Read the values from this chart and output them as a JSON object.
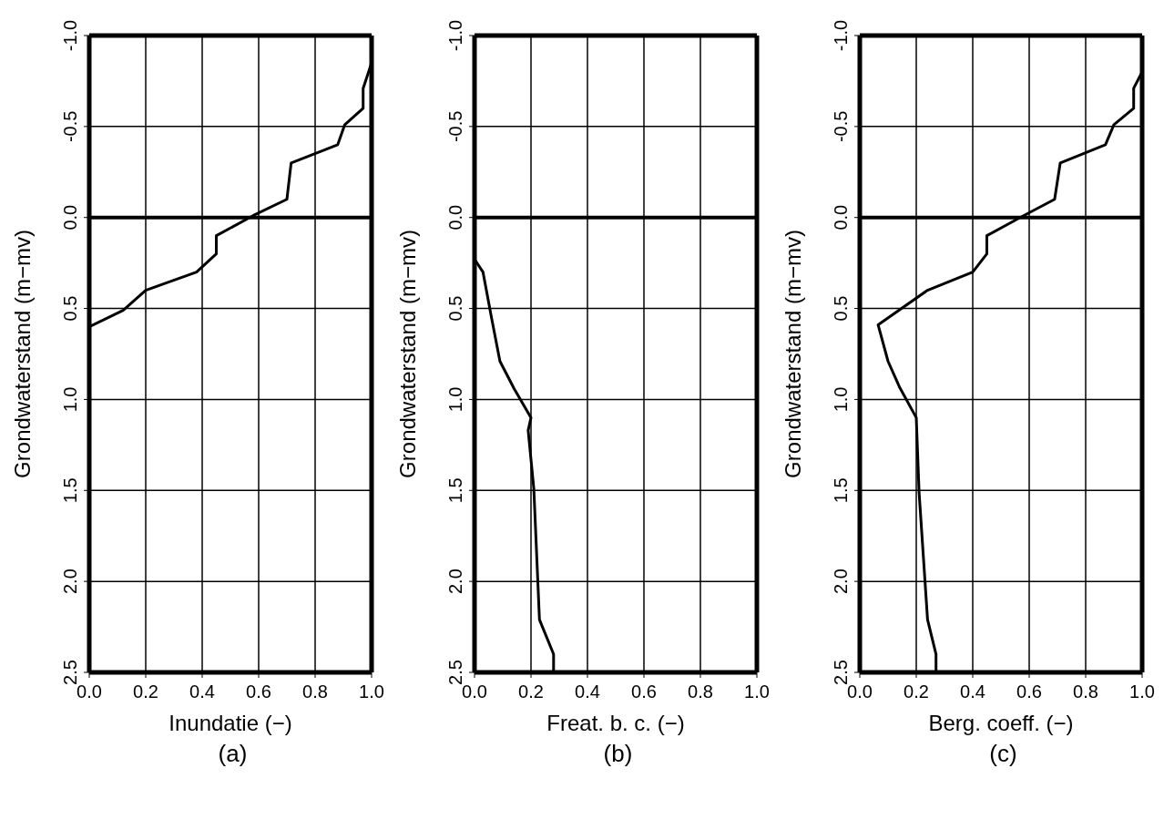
{
  "chart_data": [
    {
      "type": "line",
      "xlabel": "Inundatie (−)",
      "ylabel": "Grondwaterstand (m−mv)",
      "annotations": [
        "(a)"
      ],
      "series": [
        {
          "color": "#000000",
          "x": [
            1.0,
            0.97,
            0.97,
            0.905,
            0.88,
            0.715,
            0.7,
            0.58,
            0.45,
            0.45,
            0.38,
            0.2,
            0.12,
            0.0
          ],
          "values": [
            -0.85,
            -0.71,
            -0.6,
            -0.51,
            -0.4,
            -0.3,
            -0.1,
            -0.01,
            0.1,
            0.2,
            0.3,
            0.4,
            0.51,
            0.6
          ]
        }
      ],
      "xlim": [
        0,
        1
      ],
      "xticks": [
        {
          "value": 0,
          "label": "0.0"
        },
        {
          "value": 0.2,
          "label": "0.2"
        },
        {
          "value": 0.4,
          "label": "0.4"
        },
        {
          "value": 0.6,
          "label": "0.6"
        },
        {
          "value": 0.8,
          "label": "0.8"
        },
        {
          "value": 1,
          "label": "1.0"
        }
      ],
      "ylim": [
        2.5,
        -1.0
      ],
      "yticks": [
        {
          "value": -1,
          "label": "-1.0"
        },
        {
          "value": -0.5,
          "label": "-0.5"
        },
        {
          "value": 0,
          "label": "0.0"
        },
        {
          "value": 0.5,
          "label": "0.5"
        },
        {
          "value": 1,
          "label": "1.0"
        },
        {
          "value": 1.5,
          "label": "1.5"
        },
        {
          "value": 2,
          "label": "2.0"
        },
        {
          "value": 2.5,
          "label": "2.5"
        }
      ],
      "ref_lines": [
        {
          "axis": "y",
          "value": 0,
          "color": "#000000"
        }
      ],
      "grid": true,
      "marker": "none",
      "line_style": "solid"
    },
    {
      "type": "line",
      "xlabel": "Freat. b. c. (−)",
      "ylabel": "Grondwaterstand (m−mv)",
      "annotations": [
        "(b)"
      ],
      "series": [
        {
          "color": "#000000",
          "x": [
            0.0,
            0.03,
            0.06,
            0.09,
            0.14,
            0.2,
            0.19,
            0.21,
            0.23,
            0.28,
            0.28
          ],
          "values": [
            0.23,
            0.3,
            0.55,
            0.79,
            0.94,
            1.1,
            1.17,
            1.49,
            2.21,
            2.4,
            2.5
          ]
        }
      ],
      "xlim": [
        0,
        1
      ],
      "xticks": [
        {
          "value": 0,
          "label": "0.0"
        },
        {
          "value": 0.2,
          "label": "0.2"
        },
        {
          "value": 0.4,
          "label": "0.4"
        },
        {
          "value": 0.6,
          "label": "0.6"
        },
        {
          "value": 0.8,
          "label": "0.8"
        },
        {
          "value": 1,
          "label": "1.0"
        }
      ],
      "ylim": [
        2.5,
        -1.0
      ],
      "yticks": [
        {
          "value": -1,
          "label": "-1.0"
        },
        {
          "value": -0.5,
          "label": "-0.5"
        },
        {
          "value": 0,
          "label": "0.0"
        },
        {
          "value": 0.5,
          "label": "0.5"
        },
        {
          "value": 1,
          "label": "1.0"
        },
        {
          "value": 1.5,
          "label": "1.5"
        },
        {
          "value": 2,
          "label": "2.0"
        },
        {
          "value": 2.5,
          "label": "2.5"
        }
      ],
      "ref_lines": [
        {
          "axis": "y",
          "value": 0,
          "color": "#000000"
        }
      ],
      "grid": true,
      "marker": "none",
      "line_style": "solid"
    },
    {
      "type": "line",
      "xlabel": "Berg. coeff. (−)",
      "ylabel": "Grondwaterstand (m−mv)",
      "annotations": [
        "(c)"
      ],
      "series": [
        {
          "color": "#000000",
          "x": [
            1.0,
            0.97,
            0.97,
            0.9,
            0.87,
            0.71,
            0.69,
            0.58,
            0.45,
            0.45,
            0.4,
            0.24,
            0.065,
            0.1,
            0.14,
            0.2,
            0.21,
            0.24,
            0.27,
            0.27
          ],
          "values": [
            -0.8,
            -0.71,
            -0.6,
            -0.51,
            -0.4,
            -0.3,
            -0.1,
            -0.01,
            0.1,
            0.2,
            0.3,
            0.4,
            0.59,
            0.79,
            0.93,
            1.1,
            1.51,
            2.21,
            2.4,
            2.5
          ]
        }
      ],
      "xlim": [
        0,
        1
      ],
      "xticks": [
        {
          "value": 0,
          "label": "0.0"
        },
        {
          "value": 0.2,
          "label": "0.2"
        },
        {
          "value": 0.4,
          "label": "0.4"
        },
        {
          "value": 0.6,
          "label": "0.6"
        },
        {
          "value": 0.8,
          "label": "0.8"
        },
        {
          "value": 1,
          "label": "1.0"
        }
      ],
      "ylim": [
        2.5,
        -1.0
      ],
      "yticks": [
        {
          "value": -1,
          "label": "-1.0"
        },
        {
          "value": -0.5,
          "label": "-0.5"
        },
        {
          "value": 0,
          "label": "0.0"
        },
        {
          "value": 0.5,
          "label": "0.5"
        },
        {
          "value": 1,
          "label": "1.0"
        },
        {
          "value": 1.5,
          "label": "1.5"
        },
        {
          "value": 2,
          "label": "2.0"
        },
        {
          "value": 2.5,
          "label": "2.5"
        }
      ],
      "ref_lines": [
        {
          "axis": "y",
          "value": 0,
          "color": "#000000"
        }
      ],
      "grid": true,
      "marker": "none",
      "line_style": "solid"
    }
  ]
}
